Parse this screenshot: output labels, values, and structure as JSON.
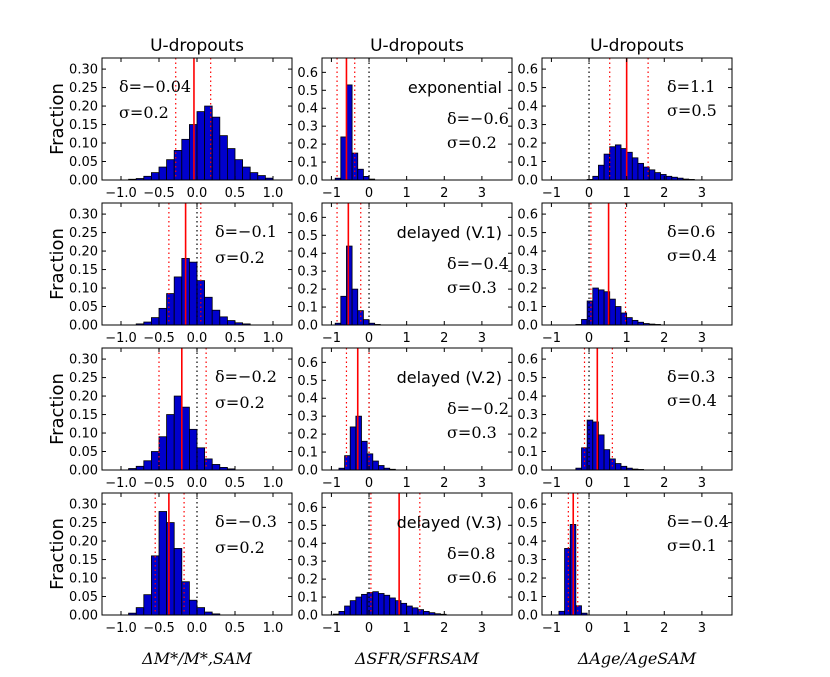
{
  "chart_data": {
    "type": "bar",
    "colors": {
      "bar": "#0000cc",
      "edge": "#000000",
      "median": "#ff0000",
      "percentile": "#ff0000",
      "zero": "#000000"
    },
    "column_titles": [
      "U-dropouts",
      "U-dropouts",
      "U-dropouts"
    ],
    "row_ylabel": "Fraction",
    "xlabels": [
      "ΔM*/M*,SAM",
      "ΔSFR/SFRSAM",
      "ΔAge/AgeSAM"
    ],
    "columns": [
      {
        "xlim": [
          -1.25,
          1.25
        ],
        "ylim": [
          0,
          0.33
        ],
        "xticks": [
          -1.0,
          -0.5,
          0.0,
          0.5,
          1.0
        ],
        "xtick_labels": [
          "−1.0",
          "−0.5",
          "0.0",
          "0.5",
          "1.0"
        ],
        "yticks": [
          0,
          0.05,
          0.1,
          0.15,
          0.2,
          0.25,
          0.3
        ],
        "ytick_labels": [
          "0.00",
          "0.05",
          "0.10",
          "0.15",
          "0.20",
          "0.25",
          "0.30"
        ]
      },
      {
        "xlim": [
          -1.25,
          3.8
        ],
        "ylim": [
          0,
          0.68
        ],
        "xticks": [
          -1,
          0,
          1,
          2,
          3
        ],
        "xtick_labels": [
          "−1",
          "0",
          "1",
          "2",
          "3"
        ],
        "yticks": [
          0,
          0.1,
          0.2,
          0.3,
          0.4,
          0.5,
          0.6
        ],
        "ytick_labels": [
          "0.0",
          "0.1",
          "0.2",
          "0.3",
          "0.4",
          "0.5",
          "0.6"
        ]
      },
      {
        "xlim": [
          -1.25,
          3.8
        ],
        "ylim": [
          0,
          0.66
        ],
        "xticks": [
          -1,
          0,
          1,
          2,
          3
        ],
        "xtick_labels": [
          "−1",
          "0",
          "1",
          "2",
          "3"
        ],
        "yticks": [
          0,
          0.1,
          0.2,
          0.3,
          0.4,
          0.5,
          0.6
        ],
        "ytick_labels": [
          "0.0",
          "0.1",
          "0.2",
          "0.3",
          "0.4",
          "0.5",
          "0.6"
        ]
      }
    ],
    "panels": [
      {
        "row": 0,
        "col": 0,
        "model": "",
        "delta": "δ=−0.04",
        "sigma": "σ=0.2",
        "bin_start": -0.9,
        "bin_width": 0.1,
        "values": [
          0.002,
          0.004,
          0.01,
          0.02,
          0.035,
          0.055,
          0.08,
          0.11,
          0.15,
          0.185,
          0.2,
          0.17,
          0.12,
          0.085,
          0.055,
          0.035,
          0.02,
          0.012,
          0.005
        ],
        "median": -0.04,
        "percentiles": [
          -0.28,
          0.18
        ],
        "zero_line": false
      },
      {
        "row": 0,
        "col": 1,
        "model": "exponential",
        "delta": "δ=−0.6",
        "sigma": "σ=0.2",
        "bin_start": -0.9,
        "bin_width": 0.15,
        "values": [
          0.01,
          0.24,
          0.53,
          0.15,
          0.06,
          0.02,
          0.005
        ],
        "median": -0.6,
        "percentiles": [
          -0.85,
          -0.38
        ],
        "zero_line": true
      },
      {
        "row": 0,
        "col": 2,
        "model": "",
        "delta": "δ=1.1",
        "sigma": "σ=0.5",
        "bin_start": -0.05,
        "bin_width": 0.15,
        "values": [
          0.003,
          0.02,
          0.08,
          0.14,
          0.18,
          0.19,
          0.17,
          0.15,
          0.12,
          0.09,
          0.07,
          0.055,
          0.04,
          0.03,
          0.02,
          0.015,
          0.01,
          0.005,
          0.003
        ],
        "median": 1.0,
        "percentiles": [
          0.55,
          1.57
        ],
        "zero_line": true
      },
      {
        "row": 1,
        "col": 0,
        "model": "",
        "delta": "δ=−0.1",
        "sigma": "σ=0.2",
        "bin_start": -0.8,
        "bin_width": 0.1,
        "values": [
          0.003,
          0.008,
          0.02,
          0.045,
          0.085,
          0.13,
          0.18,
          0.17,
          0.12,
          0.075,
          0.04,
          0.022,
          0.012,
          0.006,
          0.003
        ],
        "median": -0.15,
        "percentiles": [
          -0.37,
          0.05
        ],
        "zero_line": true
      },
      {
        "row": 1,
        "col": 1,
        "model": "delayed (V.1)",
        "delta": "δ=−0.4",
        "sigma": "σ=0.3",
        "bin_start": -0.9,
        "bin_width": 0.15,
        "values": [
          0.01,
          0.16,
          0.44,
          0.2,
          0.08,
          0.03,
          0.01,
          0.003
        ],
        "median": -0.55,
        "percentiles": [
          -0.85,
          -0.22
        ],
        "zero_line": true
      },
      {
        "row": 1,
        "col": 2,
        "model": "",
        "delta": "δ=0.6",
        "sigma": "σ=0.4",
        "bin_start": -0.35,
        "bin_width": 0.15,
        "values": [
          0.003,
          0.03,
          0.13,
          0.2,
          0.19,
          0.18,
          0.14,
          0.1,
          0.065,
          0.04,
          0.025,
          0.015,
          0.008,
          0.005,
          0.003
        ],
        "median": 0.52,
        "percentiles": [
          0.05,
          0.97
        ],
        "zero_line": true
      },
      {
        "row": 2,
        "col": 0,
        "model": "",
        "delta": "δ=−0.2",
        "sigma": "σ=0.2",
        "bin_start": -0.9,
        "bin_width": 0.1,
        "values": [
          0.004,
          0.01,
          0.025,
          0.05,
          0.09,
          0.15,
          0.2,
          0.17,
          0.11,
          0.06,
          0.03,
          0.015,
          0.007,
          0.003
        ],
        "median": -0.2,
        "percentiles": [
          -0.5,
          0.12
        ],
        "zero_line": true
      },
      {
        "row": 2,
        "col": 1,
        "model": "delayed (V.2)",
        "delta": "δ=−0.2",
        "sigma": "σ=0.3",
        "bin_start": -0.8,
        "bin_width": 0.15,
        "values": [
          0.01,
          0.08,
          0.24,
          0.3,
          0.16,
          0.09,
          0.05,
          0.025,
          0.01,
          0.004
        ],
        "median": -0.3,
        "percentiles": [
          -0.6,
          0.0
        ],
        "zero_line": true
      },
      {
        "row": 2,
        "col": 2,
        "model": "",
        "delta": "δ=0.3",
        "sigma": "σ=0.4",
        "bin_start": -0.35,
        "bin_width": 0.15,
        "values": [
          0.01,
          0.12,
          0.27,
          0.26,
          0.19,
          0.11,
          0.06,
          0.035,
          0.02,
          0.01,
          0.005,
          0.003
        ],
        "median": 0.22,
        "percentiles": [
          -0.12,
          0.62
        ],
        "zero_line": true
      },
      {
        "row": 3,
        "col": 0,
        "model": "",
        "delta": "δ=−0.3",
        "sigma": "σ=0.2",
        "bin_start": -0.9,
        "bin_width": 0.1,
        "values": [
          0.005,
          0.02,
          0.055,
          0.16,
          0.28,
          0.25,
          0.18,
          0.09,
          0.04,
          0.02,
          0.008,
          0.003
        ],
        "median": -0.37,
        "percentiles": [
          -0.55,
          -0.17
        ],
        "zero_line": true
      },
      {
        "row": 3,
        "col": 1,
        "model": "delayed (V.3)",
        "delta": "δ=0.8",
        "sigma": "σ=0.6",
        "bin_start": -0.95,
        "bin_width": 0.15,
        "values": [
          0.005,
          0.02,
          0.05,
          0.08,
          0.1,
          0.115,
          0.125,
          0.13,
          0.12,
          0.11,
          0.095,
          0.08,
          0.065,
          0.05,
          0.04,
          0.03,
          0.02,
          0.013,
          0.007,
          0.004
        ],
        "median": 0.8,
        "percentiles": [
          0.05,
          1.35
        ],
        "zero_line": true
      },
      {
        "row": 3,
        "col": 2,
        "model": "",
        "delta": "δ=−0.4",
        "sigma": "σ=0.1",
        "bin_start": -0.8,
        "bin_width": 0.15,
        "values": [
          0.02,
          0.36,
          0.49,
          0.05,
          0.01
        ],
        "median": -0.42,
        "percentiles": [
          -0.55,
          -0.3
        ],
        "zero_line": true
      }
    ]
  }
}
